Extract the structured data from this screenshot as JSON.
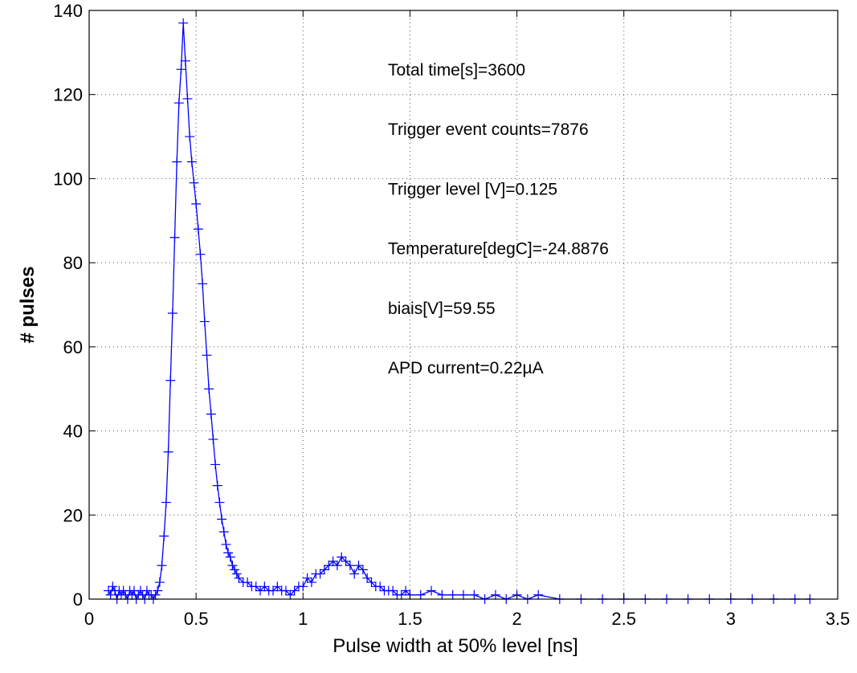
{
  "chart_data": {
    "type": "line",
    "xlabel": "Pulse width at 50% level [ns]",
    "ylabel": "# pulses",
    "xlim": [
      0,
      3.5
    ],
    "ylim": [
      0,
      140
    ],
    "xticks": [
      0,
      0.5,
      1,
      1.5,
      2,
      2.5,
      3,
      3.5
    ],
    "yticks": [
      0,
      20,
      40,
      60,
      80,
      100,
      120,
      140
    ],
    "grid": true,
    "marker": "+",
    "line_color": "#0000ff",
    "annotations": [
      "Total time[s]=3600",
      "Trigger event counts=7876",
      "Trigger level [V]=0.125",
      "Temperature[degC]=-24.8876",
      "biais[V]=59.55",
      "APD current=0.22µA"
    ],
    "series": [
      {
        "x": [
          0.09,
          0.1,
          0.11,
          0.12,
          0.13,
          0.14,
          0.15,
          0.16,
          0.17,
          0.18,
          0.19,
          0.2,
          0.21,
          0.22,
          0.23,
          0.24,
          0.25,
          0.26,
          0.27,
          0.28,
          0.29,
          0.3,
          0.31,
          0.32,
          0.33,
          0.34,
          0.35,
          0.36,
          0.37,
          0.38,
          0.39,
          0.4,
          0.41,
          0.42,
          0.43,
          0.44,
          0.45,
          0.46,
          0.47,
          0.48,
          0.49,
          0.5,
          0.51,
          0.52,
          0.53,
          0.54,
          0.55,
          0.56,
          0.57,
          0.58,
          0.59,
          0.6,
          0.61,
          0.62,
          0.63,
          0.64,
          0.65,
          0.66,
          0.67,
          0.68,
          0.69,
          0.7,
          0.72,
          0.74,
          0.76,
          0.78,
          0.8,
          0.82,
          0.84,
          0.86,
          0.88,
          0.9,
          0.92,
          0.94,
          0.96,
          0.98,
          1.0,
          1.02,
          1.04,
          1.06,
          1.08,
          1.1,
          1.12,
          1.14,
          1.16,
          1.18,
          1.2,
          1.22,
          1.24,
          1.26,
          1.28,
          1.3,
          1.32,
          1.34,
          1.36,
          1.38,
          1.4,
          1.42,
          1.44,
          1.46,
          1.48,
          1.5,
          1.55,
          1.6,
          1.65,
          1.7,
          1.75,
          1.8,
          1.85,
          1.9,
          1.95,
          2.0,
          2.05,
          2.1,
          2.2,
          2.3,
          2.4,
          2.5,
          2.6,
          2.7,
          2.8,
          2.9,
          3.0,
          3.1,
          3.2,
          3.3,
          3.37
        ],
        "y": [
          2,
          1,
          3,
          2,
          0,
          2,
          1,
          2,
          1,
          0,
          2,
          1,
          2,
          0,
          1,
          2,
          1,
          0,
          2,
          1,
          1,
          0,
          1,
          2,
          4,
          8,
          15,
          23,
          35,
          52,
          68,
          86,
          104,
          118,
          126,
          137,
          128,
          119,
          110,
          104,
          99,
          94,
          88,
          82,
          75,
          66,
          58,
          50,
          44,
          38,
          32,
          27,
          23,
          19,
          16,
          13,
          11,
          10,
          8,
          7,
          6,
          5,
          4,
          4,
          3,
          3,
          2,
          3,
          2,
          2,
          3,
          2,
          2,
          1,
          2,
          3,
          3,
          5,
          4,
          6,
          6,
          7,
          8,
          9,
          8,
          10,
          9,
          8,
          6,
          8,
          7,
          5,
          4,
          3,
          3,
          2,
          2,
          2,
          1,
          1,
          2,
          1,
          1,
          2,
          1,
          1,
          1,
          1,
          0,
          1,
          0,
          1,
          0,
          1,
          0,
          0,
          0,
          0,
          0,
          0,
          0,
          0,
          0,
          0,
          0,
          0,
          0
        ]
      }
    ]
  }
}
